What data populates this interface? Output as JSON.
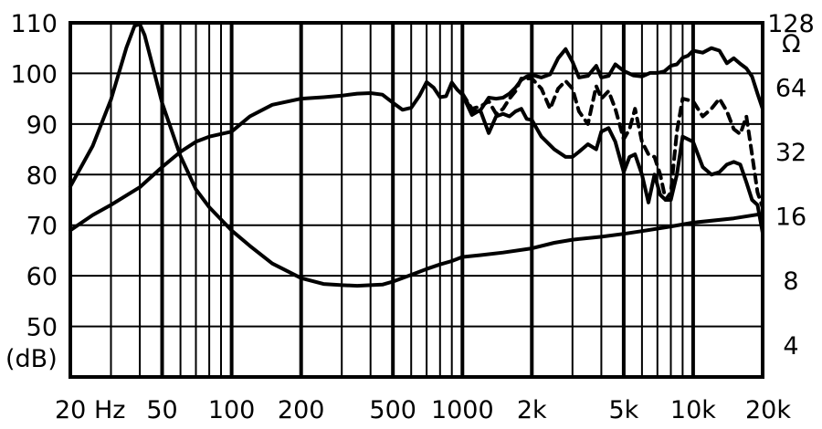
{
  "chart_data": {
    "type": "line",
    "x_scale": "log",
    "xlim": [
      20,
      20000
    ],
    "ylim": [
      40,
      110
    ],
    "y2_scale": "log",
    "y2lim": [
      2.83,
      128
    ],
    "grid": true,
    "x_ticks": [
      {
        "value": 20,
        "label": "20 Hz"
      },
      {
        "value": 50,
        "label": "50"
      },
      {
        "value": 100,
        "label": "100"
      },
      {
        "value": 200,
        "label": "200"
      },
      {
        "value": 500,
        "label": "500"
      },
      {
        "value": 1000,
        "label": "1000"
      },
      {
        "value": 2000,
        "label": "2k"
      },
      {
        "value": 5000,
        "label": "5k"
      },
      {
        "value": 10000,
        "label": "10k"
      },
      {
        "value": 20000,
        "label": "20k"
      }
    ],
    "y_ticks": [
      {
        "value": 110,
        "label": "110"
      },
      {
        "value": 100,
        "label": "100"
      },
      {
        "value": 90,
        "label": "90"
      },
      {
        "value": 80,
        "label": "80"
      },
      {
        "value": 70,
        "label": "70"
      },
      {
        "value": 60,
        "label": "60"
      },
      {
        "value": 50,
        "label": "50"
      }
    ],
    "y_unit_label": "(dB)",
    "y2_unit_label": "Ω",
    "y2_ticks": [
      {
        "value": 128,
        "label": "128"
      },
      {
        "value": 64,
        "label": "64"
      },
      {
        "value": 32,
        "label": "32"
      },
      {
        "value": 16,
        "label": "16"
      },
      {
        "value": 8,
        "label": "8"
      },
      {
        "value": 4,
        "label": "4"
      }
    ],
    "series": [
      {
        "axis": "left",
        "style": "solid",
        "x": [
          20,
          25,
          30,
          40,
          50,
          60,
          70,
          80,
          100,
          120,
          150,
          200,
          250,
          300,
          350,
          400,
          450,
          500,
          550,
          600,
          650,
          700,
          750,
          800,
          850,
          900,
          950,
          1000,
          1100,
          1200,
          1300,
          1400,
          1500,
          1600,
          1700,
          1800,
          1900,
          2000,
          2200,
          2400,
          2600,
          2800,
          3000,
          3200,
          3500,
          3800,
          4000,
          4300,
          4600,
          5000,
          5500,
          6000,
          6500,
          7000,
          7500,
          8000,
          8500,
          9000,
          9500,
          10000,
          11000,
          12000,
          13000,
          14000,
          15000,
          16000,
          17000,
          18000,
          19000,
          20000
        ],
        "y": [
          69,
          72,
          74,
          77.5,
          81.5,
          84.5,
          86.5,
          87.5,
          88.5,
          91.5,
          93.8,
          95,
          95.3,
          95.6,
          96,
          96.1,
          95.8,
          94.2,
          92.8,
          93.2,
          95.5,
          98.3,
          97.2,
          95.3,
          95.5,
          98.2,
          96.8,
          95.8,
          91.8,
          92.8,
          95.2,
          95,
          95.2,
          96,
          97.2,
          98.7,
          99.4,
          99.7,
          99.2,
          99.8,
          103,
          104.8,
          102.3,
          99.2,
          99.5,
          101.5,
          99.2,
          99.5,
          101.8,
          100.5,
          99.6,
          99.4,
          100.1,
          100.1,
          100.4,
          101.5,
          101.8,
          103.1,
          103.5,
          104.5,
          104.1,
          105,
          104.5,
          102,
          103,
          101.9,
          101,
          99.4,
          96,
          93
        ]
      },
      {
        "axis": "left",
        "style": "dashed",
        "x": [
          1000,
          1100,
          1200,
          1300,
          1400,
          1500,
          1600,
          1700,
          1800,
          2000,
          2200,
          2400,
          2600,
          2800,
          3000,
          3200,
          3500,
          3800,
          4000,
          4300,
          4600,
          5000,
          5300,
          5600,
          6000,
          6400,
          6800,
          7200,
          7600,
          8000,
          8500,
          9000,
          10000,
          11000,
          12000,
          13000,
          14000,
          15000,
          16000,
          17000,
          18000,
          19000,
          20000
        ],
        "y": [
          96,
          93,
          93.5,
          94.5,
          92,
          93,
          95,
          96.5,
          99,
          99,
          97,
          93,
          97,
          98.5,
          97,
          92.5,
          90,
          97.5,
          95,
          96.5,
          93,
          87,
          89,
          93,
          86.5,
          84,
          83.5,
          80,
          75,
          76.5,
          88.5,
          95,
          94.5,
          91.5,
          93,
          95,
          92.5,
          89,
          88,
          91.5,
          84,
          76.5,
          73.5
        ]
      },
      {
        "axis": "left",
        "style": "solid",
        "x": [
          1000,
          1100,
          1200,
          1300,
          1400,
          1500,
          1600,
          1700,
          1800,
          1900,
          2000,
          2200,
          2500,
          2800,
          3000,
          3200,
          3500,
          3800,
          4000,
          4300,
          4600,
          5000,
          5300,
          5600,
          6000,
          6400,
          6800,
          7200,
          7600,
          8000,
          8500,
          9000,
          10000,
          11000,
          12000,
          13000,
          14000,
          15000,
          16000,
          17000,
          18000,
          19000,
          20000
        ],
        "y": [
          96,
          92.5,
          92.5,
          88.2,
          91.5,
          92,
          91.5,
          92.5,
          93,
          91,
          90.8,
          87.5,
          85,
          83.5,
          83.5,
          84.5,
          86,
          85,
          88.5,
          89.2,
          86.5,
          80.5,
          83.5,
          84,
          80,
          74.5,
          80,
          76,
          75,
          75,
          80,
          87.5,
          86.5,
          81.5,
          80,
          80.5,
          82,
          82.5,
          82,
          78.5,
          75,
          74,
          68.5
        ]
      },
      {
        "axis": "right",
        "style": "solid",
        "x": [
          20,
          25,
          30,
          35,
          38,
          40,
          42,
          45,
          50,
          60,
          70,
          80,
          100,
          120,
          150,
          200,
          250,
          300,
          350,
          400,
          450,
          500,
          600,
          700,
          800,
          900,
          1000,
          1200,
          1500,
          2000,
          2500,
          3000,
          4000,
          5000,
          6000,
          8000,
          10000,
          15000,
          20000
        ],
        "y": [
          22,
          34,
          56,
          98,
          124,
          126,
          112,
          84,
          54,
          30.5,
          21.3,
          17.6,
          13.7,
          11.6,
          9.6,
          8.2,
          7.7,
          7.6,
          7.55,
          7.6,
          7.65,
          7.9,
          8.5,
          9.05,
          9.5,
          9.85,
          10.3,
          10.5,
          10.8,
          11.3,
          12,
          12.4,
          12.8,
          13.2,
          13.6,
          14.3,
          14.9,
          15.6,
          16.4
        ]
      }
    ]
  }
}
